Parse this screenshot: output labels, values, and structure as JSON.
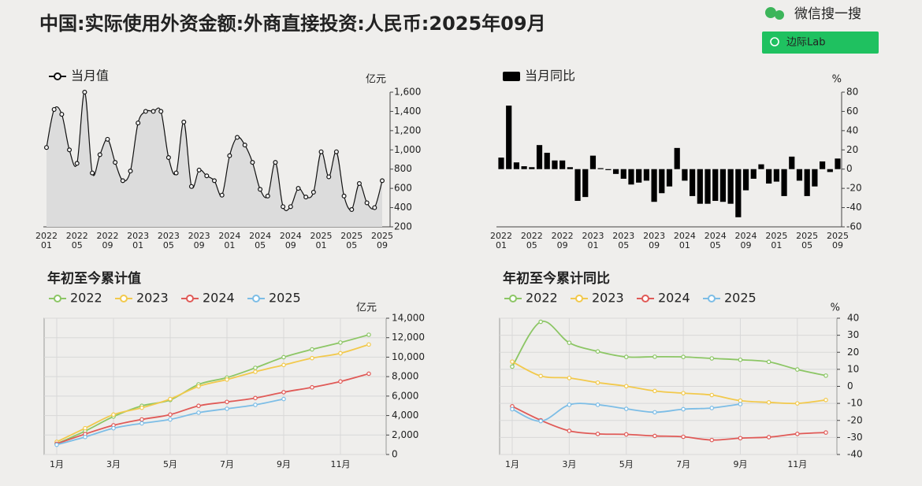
{
  "title": "中国:实际使用外资金额:外商直接投资:人民币:2025年09月",
  "search_label": "微信搜一搜",
  "button_label": "边际Lab",
  "chart_data": [
    {
      "type": "line",
      "area": true,
      "legend": "当月值",
      "y_unit": "亿元",
      "color": "#111111",
      "area_color": "#dcdcdc",
      "categories": [
        "2022\n01",
        null,
        null,
        null,
        "2022\n05",
        null,
        null,
        null,
        "2022\n09",
        null,
        null,
        null,
        "2023\n01",
        null,
        null,
        null,
        "2023\n05",
        null,
        null,
        null,
        "2023\n09",
        null,
        null,
        null,
        "2024\n01",
        null,
        null,
        null,
        "2024\n05",
        null,
        null,
        null,
        "2024\n09",
        null,
        null,
        null,
        "2025\n01",
        null,
        null,
        null,
        "2025\n05",
        null,
        null,
        null,
        "2025\n09"
      ],
      "values": [
        1025,
        1420,
        1370,
        1000,
        860,
        1600,
        760,
        950,
        1110,
        870,
        680,
        780,
        1280,
        1400,
        1400,
        1400,
        920,
        760,
        1290,
        620,
        790,
        730,
        680,
        530,
        940,
        1130,
        1050,
        870,
        590,
        520,
        870,
        410,
        410,
        600,
        510,
        560,
        980,
        720,
        980,
        520,
        380,
        650,
        450,
        400,
        680
      ],
      "ylim": [
        200,
        1600
      ],
      "yticks": [
        200,
        400,
        600,
        800,
        {
          "value": 1000,
          "label": "1,000"
        },
        {
          "value": 1200,
          "label": "1,200"
        },
        {
          "value": 1400,
          "label": "1,400"
        },
        {
          "value": 1600,
          "label": "1,600"
        }
      ],
      "grid": false
    },
    {
      "type": "bar",
      "legend": "当月同比",
      "y_unit": "%",
      "color": "#000000",
      "categories": [
        "2022\n01",
        null,
        null,
        null,
        "2022\n05",
        null,
        null,
        null,
        "2022\n09",
        null,
        null,
        null,
        "2023\n01",
        null,
        null,
        null,
        "2023\n05",
        null,
        null,
        null,
        "2023\n09",
        null,
        null,
        null,
        "2024\n01",
        null,
        null,
        null,
        "2024\n05",
        null,
        null,
        null,
        "2024\n09",
        null,
        null,
        null,
        "2025\n01",
        null,
        null,
        null,
        "2025\n05",
        null,
        null,
        null,
        "2025\n09"
      ],
      "values": [
        12,
        66,
        7,
        3,
        2,
        25,
        17,
        9,
        9,
        2,
        -33,
        -29,
        14,
        1,
        -1,
        -5,
        -10,
        -16,
        -14,
        -12,
        -34,
        -25,
        -18,
        22,
        -12,
        -28,
        -36,
        -36,
        -33,
        -34,
        -36,
        -50,
        -22,
        -10,
        5,
        -15,
        -13,
        -28,
        13,
        -12,
        -28,
        -18,
        8,
        -3,
        11
      ],
      "ylim": [
        -60,
        80
      ],
      "yticks": [
        -60,
        -40,
        -20,
        0,
        20,
        40,
        60,
        80
      ],
      "grid": false
    },
    {
      "type": "line",
      "title": "年初至今累计值",
      "y_unit": "亿元",
      "categories": [
        "1月",
        null,
        "3月",
        null,
        "5月",
        null,
        "7月",
        null,
        "9月",
        null,
        "11月",
        null
      ],
      "series": [
        {
          "name": "2022",
          "color": "#8cc665",
          "values": [
            1100,
            2400,
            3900,
            5000,
            5600,
            7200,
            7900,
            8900,
            10000,
            10800,
            11500,
            12300
          ]
        },
        {
          "name": "2023",
          "color": "#f2c94c",
          "values": [
            1300,
            2700,
            4100,
            4800,
            5700,
            7000,
            7700,
            8500,
            9200,
            9900,
            10400,
            11300
          ]
        },
        {
          "name": "2024",
          "color": "#e05a57",
          "values": [
            1100,
            2100,
            3000,
            3600,
            4100,
            5000,
            5400,
            5800,
            6400,
            6900,
            7500,
            8300
          ]
        },
        {
          "name": "2025",
          "color": "#7cbde6",
          "values": [
            1000,
            1800,
            2700,
            3200,
            3600,
            4300,
            4700,
            5100,
            5700,
            null,
            null,
            null
          ]
        }
      ],
      "ylim": [
        0,
        14000
      ],
      "yticks": [
        0,
        {
          "value": 2000,
          "label": "2,000"
        },
        {
          "value": 4000,
          "label": "4,000"
        },
        {
          "value": 6000,
          "label": "6,000"
        },
        {
          "value": 8000,
          "label": "8,000"
        },
        {
          "value": 10000,
          "label": "10,000"
        },
        {
          "value": 12000,
          "label": "12,000"
        },
        {
          "value": 14000,
          "label": "14,000"
        }
      ],
      "grid": true
    },
    {
      "type": "line",
      "title": "年初至今累计同比",
      "y_unit": "%",
      "categories": [
        "1月",
        null,
        "3月",
        null,
        "5月",
        null,
        "7月",
        null,
        "9月",
        null,
        "11月",
        null
      ],
      "series": [
        {
          "name": "2022",
          "color": "#8cc665",
          "values": [
            11.6,
            37.9,
            25.6,
            20.5,
            17.3,
            17.4,
            17.3,
            16.4,
            15.6,
            14.4,
            9.9,
            6.3
          ]
        },
        {
          "name": "2023",
          "color": "#f2c94c",
          "values": [
            14.5,
            6.1,
            4.9,
            2.2,
            0.1,
            -2.7,
            -4.0,
            -5.1,
            -8.4,
            -9.4,
            -10.0,
            -8.0
          ]
        },
        {
          "name": "2024",
          "color": "#e05a57",
          "values": [
            -11.7,
            -19.9,
            -26.1,
            -27.9,
            -28.2,
            -29.1,
            -29.6,
            -31.5,
            -30.4,
            -29.8,
            -27.9,
            -27.1
          ]
        },
        {
          "name": "2025",
          "color": "#7cbde6",
          "values": [
            -13.4,
            -20.4,
            -10.8,
            -10.8,
            -13.2,
            -15.2,
            -13.4,
            -12.7,
            -10.4,
            null,
            null,
            null
          ]
        }
      ],
      "ylim": [
        -40,
        40
      ],
      "yticks": [
        -40,
        -30,
        -20,
        -10,
        0,
        10,
        20,
        30,
        40
      ],
      "grid": true
    }
  ]
}
